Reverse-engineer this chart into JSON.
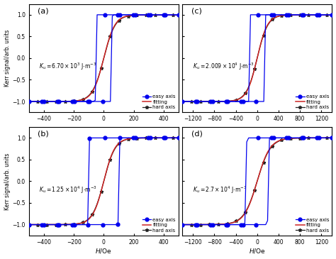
{
  "panels": [
    {
      "label": "(a)",
      "ku_text": "$K_u = 6.70\\times10^3$ J$\\cdot$m$^{-3}$",
      "xlim": [
        -500,
        500
      ],
      "xticks": [
        -400,
        -200,
        0,
        200,
        400
      ],
      "Hc": 55,
      "Hs": 280,
      "k_hard": 0.013
    },
    {
      "label": "(b)",
      "ku_text": "$K_u = 1.25\\times10^4$ J$\\cdot$m$^{-3}$",
      "xlim": [
        -500,
        500
      ],
      "xticks": [
        -400,
        -200,
        0,
        200,
        400
      ],
      "Hc": 100,
      "Hs": 280,
      "k_hard": 0.013
    },
    {
      "label": "(c)",
      "ku_text": "$K_u = 2.009\\times10^4$ J$\\cdot$m$^{-3}$",
      "xlim": [
        -1400,
        1400
      ],
      "xticks": [
        -1200,
        -800,
        -400,
        0,
        400,
        800,
        1200
      ],
      "Hc": 150,
      "Hs": 700,
      "k_hard": 0.005
    },
    {
      "label": "(d)",
      "ku_text": "$K_u = 2.7\\times10^4$ J$\\cdot$m$^{-3}$",
      "xlim": [
        -1400,
        1400
      ],
      "xticks": [
        -1200,
        -800,
        -400,
        0,
        400,
        800,
        1200
      ],
      "Hc": 200,
      "Hs": 900,
      "k_hard": 0.004
    }
  ],
  "ylim": [
    -1.25,
    1.25
  ],
  "yticks": [
    -1.0,
    -0.5,
    0.0,
    0.5,
    1.0
  ],
  "easy_color": "#0000ee",
  "fitting_color": "#cc2222",
  "hard_color": "#222222",
  "bg_color": "#ffffff",
  "legend_entries": [
    "easy axis",
    "fitting",
    "hard axis"
  ],
  "ylabel": "Kerr signal/arb. units",
  "xlabel": "$H$/Oe"
}
